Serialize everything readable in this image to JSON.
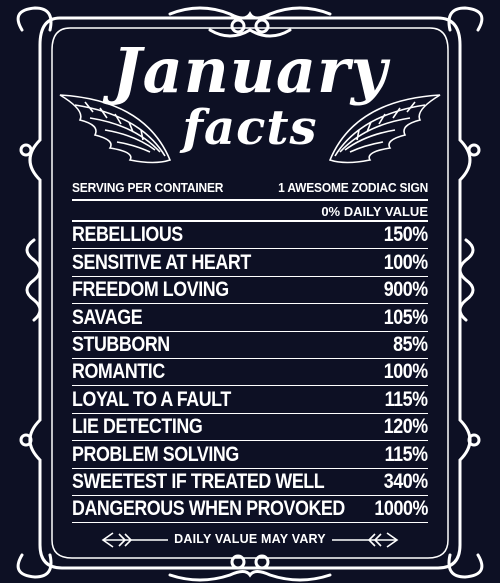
{
  "title": {
    "main": "January",
    "sub": "facts"
  },
  "serving": {
    "left": "SERVING PER CONTAINER",
    "right": "1 AWESOME ZODIAC SIGN"
  },
  "daily_value_label": "0% DAILY VALUE",
  "facts": [
    {
      "name": "REBELLIOUS",
      "value": "150%"
    },
    {
      "name": "SENSITIVE AT HEART",
      "value": "100%"
    },
    {
      "name": "FREEDOM LOVING",
      "value": "900%"
    },
    {
      "name": "SAVAGE",
      "value": "105%"
    },
    {
      "name": "STUBBORN",
      "value": "85%"
    },
    {
      "name": "ROMANTIC",
      "value": "100%"
    },
    {
      "name": "LOYAL TO A FAULT",
      "value": "115%"
    },
    {
      "name": "LIE DETECTING",
      "value": "120%"
    },
    {
      "name": "PROBLEM SOLVING",
      "value": "115%"
    },
    {
      "name": "SWEETEST IF TREATED WELL",
      "value": "340%"
    },
    {
      "name": "DANGEROUS WHEN PROVOKED",
      "value": "1000%"
    }
  ],
  "footer": "DAILY VALUE MAY VARY",
  "colors": {
    "background": "#0d1024",
    "foreground": "#ffffff"
  },
  "icons": [
    "ornate-frame-icon",
    "left-wing-icon",
    "right-wing-icon",
    "left-arrow-icon",
    "right-arrow-icon"
  ]
}
